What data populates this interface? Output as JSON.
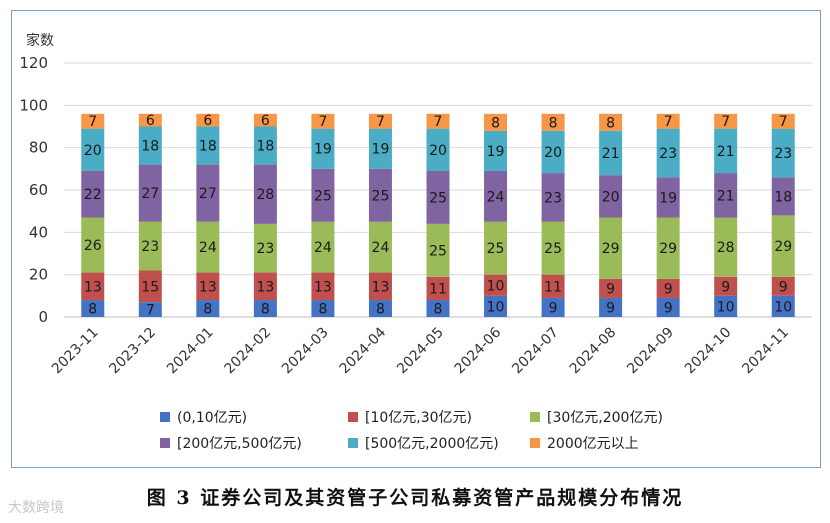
{
  "chart_data": {
    "type": "bar",
    "stacked": true,
    "ylabel": "家数",
    "ylim": [
      0,
      120
    ],
    "yticks": [
      0,
      20,
      40,
      60,
      80,
      100,
      120
    ],
    "categories": [
      "2023-11",
      "2023-12",
      "2024-01",
      "2024-02",
      "2024-03",
      "2024-04",
      "2024-05",
      "2024-06",
      "2024-07",
      "2024-08",
      "2024-09",
      "2024-10",
      "2024-11"
    ],
    "series": [
      {
        "name": "(0,10亿元)",
        "color": "#4472c4",
        "values": [
          8,
          7,
          8,
          8,
          8,
          8,
          8,
          10,
          9,
          9,
          9,
          10,
          10
        ]
      },
      {
        "name": "[10亿元,30亿元)",
        "color": "#c0504d",
        "values": [
          13,
          15,
          13,
          13,
          13,
          13,
          11,
          10,
          11,
          9,
          9,
          9,
          9
        ]
      },
      {
        "name": "[30亿元,200亿元)",
        "color": "#9bbb59",
        "values": [
          26,
          23,
          24,
          23,
          24,
          24,
          25,
          25,
          25,
          29,
          29,
          28,
          29
        ]
      },
      {
        "name": "[200亿元,500亿元)",
        "color": "#8064a2",
        "values": [
          22,
          27,
          27,
          28,
          25,
          25,
          25,
          24,
          23,
          20,
          19,
          21,
          18
        ]
      },
      {
        "name": "[500亿元,2000亿元)",
        "color": "#4bacc6",
        "values": [
          20,
          18,
          18,
          18,
          19,
          19,
          20,
          19,
          20,
          21,
          23,
          21,
          23
        ]
      },
      {
        "name": "2000亿元以上",
        "color": "#f79646",
        "values": [
          7,
          6,
          6,
          6,
          7,
          7,
          7,
          8,
          8,
          8,
          7,
          7,
          7
        ]
      }
    ],
    "legend_position": "bottom"
  },
  "caption": "图 3  证券公司及其资管子公司私募资管产品规模分布情况",
  "watermark": "大数跨境"
}
